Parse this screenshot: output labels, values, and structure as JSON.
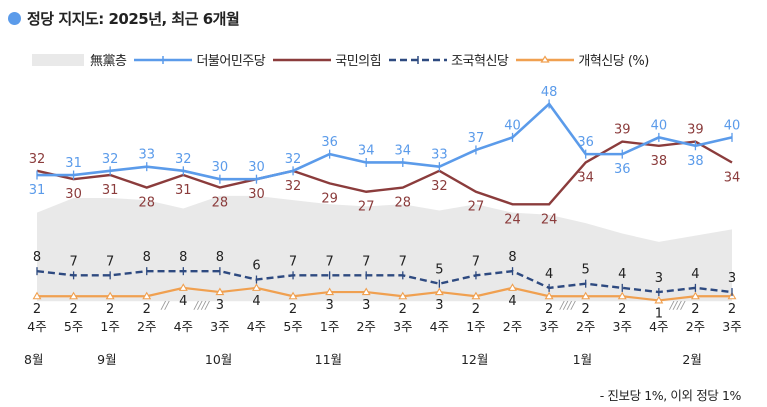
{
  "title": "정당 지지도: 2025년, 최근 6개월",
  "legend": [
    {
      "key": "independent",
      "label": "無黨층",
      "style": "area",
      "color": "#e9e9e9"
    },
    {
      "key": "democratic",
      "label": "더불어민주당",
      "style": "solid-plus",
      "color": "#5b9bea"
    },
    {
      "key": "ppp",
      "label": "국민의힘",
      "style": "solid",
      "color": "#8b3c3c"
    },
    {
      "key": "rebuilding",
      "label": "조국혁신당",
      "style": "dashed-plus",
      "color": "#2e4a80"
    },
    {
      "key": "reform",
      "label": "개혁신당 (%)",
      "style": "solid-triangle",
      "color": "#f0a050"
    }
  ],
  "footnote": "- 진보당 1%, 이외 정당 1%",
  "chart_data": {
    "type": "line",
    "title": "정당 지지도: 2025년, 최근 6개월",
    "xlabel": "",
    "ylabel": "%",
    "x_weeks": [
      "4주",
      "5주",
      "1주",
      "2주",
      "4주",
      "3주",
      "4주",
      "5주",
      "1주",
      "2주",
      "3주",
      "4주",
      "1주",
      "2주",
      "3주",
      "2주",
      "3주",
      "4주",
      "2주",
      "3주"
    ],
    "x_months": [
      {
        "label": "8월",
        "index": 0
      },
      {
        "label": "9월",
        "index": 2
      },
      {
        "label": "10월",
        "index": 5
      },
      {
        "label": "11월",
        "index": 8
      },
      {
        "label": "12월",
        "index": 12
      },
      {
        "label": "1월",
        "index": 15
      },
      {
        "label": "2월",
        "index": 18
      }
    ],
    "gap_markers": [
      {
        "after_index": 3,
        "glyph": "//"
      },
      {
        "after_index": 4,
        "glyph": "////"
      },
      {
        "after_index": 14,
        "glyph": "////"
      },
      {
        "after_index": 17,
        "glyph": "////"
      }
    ],
    "series": [
      {
        "name": "더불어민주당",
        "color": "#5b9bea",
        "values": [
          31,
          31,
          32,
          33,
          32,
          30,
          30,
          32,
          36,
          34,
          34,
          33,
          37,
          40,
          48,
          36,
          36,
          40,
          38,
          40
        ]
      },
      {
        "name": "국민의힘",
        "color": "#8b3c3c",
        "values": [
          32,
          30,
          31,
          28,
          31,
          28,
          30,
          32,
          29,
          27,
          28,
          32,
          27,
          24,
          24,
          34,
          39,
          38,
          39,
          34
        ]
      },
      {
        "name": "조국혁신당",
        "color": "#2e4a80",
        "values": [
          8,
          7,
          7,
          8,
          8,
          8,
          6,
          7,
          7,
          7,
          7,
          5,
          7,
          8,
          4,
          5,
          4,
          3,
          4,
          3
        ]
      },
      {
        "name": "개혁신당",
        "color": "#f0a050",
        "values": [
          2,
          2,
          2,
          2,
          4,
          3,
          4,
          2,
          3,
          3,
          2,
          3,
          2,
          4,
          2,
          2,
          2,
          1,
          2,
          2
        ]
      },
      {
        "name": "無黨층",
        "color": "#e9e9e9",
        "type": "area",
        "values": [
          22,
          25.5,
          25.5,
          25,
          23,
          26,
          26,
          25,
          24,
          23.5,
          24,
          22.5,
          24,
          22,
          21.5,
          19.5,
          17,
          15,
          16.5,
          18
        ]
      }
    ],
    "ylim": [
      0,
      50
    ],
    "grid": false,
    "legend_position": "top"
  }
}
